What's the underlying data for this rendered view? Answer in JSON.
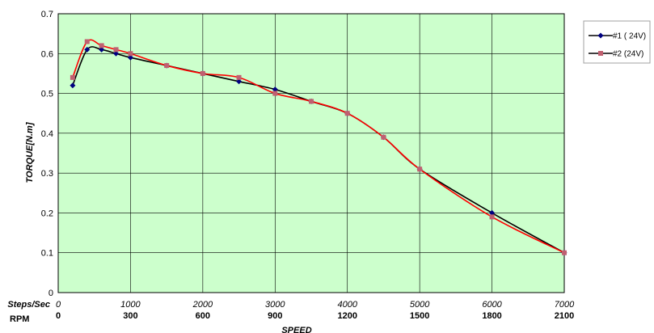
{
  "chart_data": {
    "type": "line",
    "title": "",
    "xlabel": "SPEED",
    "ylabel": "TORQUE[N.m]",
    "x_axis_label_primary": "Steps/Sec",
    "x_axis_label_secondary": "RPM",
    "xlim": [
      0,
      7000
    ],
    "ylim": [
      0,
      0.7
    ],
    "x_ticks": [
      "0",
      "1000",
      "2000",
      "3000",
      "4000",
      "5000",
      "6000",
      "7000"
    ],
    "x_ticks_secondary": [
      "0",
      "300",
      "600",
      "900",
      "1200",
      "1500",
      "1800",
      "2100"
    ],
    "y_ticks": [
      "0",
      "0.1",
      "0.2",
      "0.3",
      "0.4",
      "0.5",
      "0.6",
      "0.7"
    ],
    "grid": true,
    "legend_position": "top-right",
    "plot_background": "#ccffcc",
    "series": [
      {
        "name": "#1 ( 24V)",
        "line_color": "#000000",
        "marker_color": "#000080",
        "marker": "diamond",
        "x": [
          200,
          400,
          600,
          800,
          1000,
          1500,
          2000,
          2500,
          3000,
          3500,
          4000,
          4500,
          5000,
          6000,
          7000
        ],
        "y": [
          0.52,
          0.61,
          0.61,
          0.6,
          0.59,
          0.57,
          0.55,
          0.53,
          0.51,
          0.48,
          0.45,
          0.39,
          0.31,
          0.2,
          0.1
        ]
      },
      {
        "name": "#2  (24V)",
        "line_color": "#ff0000",
        "marker_color": "#c06070",
        "marker": "square",
        "x": [
          200,
          400,
          600,
          800,
          1000,
          1500,
          2000,
          2500,
          3000,
          3500,
          4000,
          4500,
          5000,
          6000,
          7000
        ],
        "y": [
          0.54,
          0.63,
          0.62,
          0.61,
          0.6,
          0.57,
          0.55,
          0.54,
          0.5,
          0.48,
          0.45,
          0.39,
          0.31,
          0.19,
          0.1
        ]
      }
    ]
  }
}
